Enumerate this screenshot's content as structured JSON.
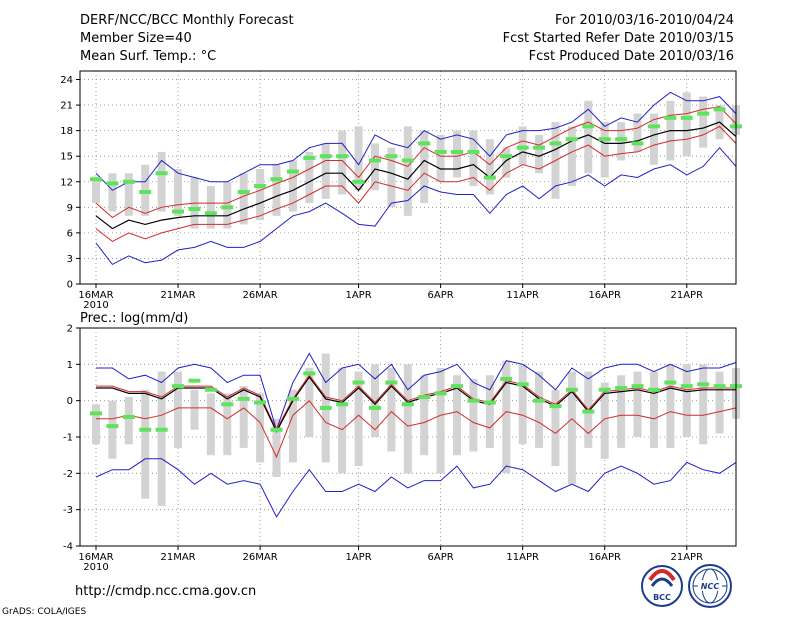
{
  "header": {
    "title": "DERF/NCC/BCC Monthly Forecast",
    "member_size": "Member Size=40",
    "variable": "Mean Surf. Temp.: °C",
    "period": "For 2010/03/16-2010/04/24",
    "started": "Fcst Started Refer Date 2010/03/15",
    "produced": "Fcst Produced Date 2010/03/16"
  },
  "footer": {
    "url": "http://cmdp.ncc.cma.gov.cn",
    "credit": "GrADS: COLA/IGES",
    "logo_bcc": "BCC",
    "logo_ncc": "NCC"
  },
  "colors": {
    "box": "#d3d3d3",
    "obs": "#5fe35f",
    "mean": "#000000",
    "inner": "#d42a2a",
    "outer": "#2020c8"
  },
  "chart_data": [
    {
      "type": "box-ensemble",
      "title": "Mean Surf. Temp.: °C",
      "x_tick_labels": [
        "16MAR",
        "21MAR",
        "26MAR",
        "1APR",
        "6APR",
        "11APR",
        "16APR",
        "21APR"
      ],
      "x_tick_days": [
        1,
        6,
        11,
        17,
        22,
        27,
        32,
        37
      ],
      "x_year_label": "2010",
      "days": 40,
      "ylim": [
        0,
        25
      ],
      "yticks": [
        0,
        3,
        6,
        9,
        12,
        15,
        18,
        21,
        24
      ],
      "series": {
        "box_low": [
          9.5,
          8.5,
          8.0,
          8.0,
          8.5,
          8.0,
          6.5,
          6.5,
          6.5,
          7.0,
          7.5,
          8.0,
          8.5,
          9.5,
          10.0,
          10.5,
          11.0,
          11.0,
          9.0,
          8.0,
          9.5,
          12.0,
          12.5,
          11.5,
          10.5,
          12.5,
          14.0,
          13.0,
          10.0,
          11.5,
          13.0,
          12.5,
          14.5,
          15.5,
          14.0,
          14.5,
          15.0,
          16.0,
          17.0,
          17.5
        ],
        "box_high": [
          12.5,
          13.0,
          13.0,
          14.0,
          15.5,
          13.5,
          12.5,
          11.5,
          12.0,
          13.0,
          13.5,
          14.0,
          14.5,
          15.5,
          16.5,
          18.0,
          18.5,
          16.5,
          16.0,
          18.5,
          18.0,
          17.5,
          18.0,
          18.0,
          17.0,
          16.0,
          18.5,
          17.5,
          19.0,
          18.5,
          21.5,
          19.0,
          19.0,
          20.0,
          20.0,
          21.5,
          22.5,
          22.0,
          21.0,
          21.0
        ],
        "obs": [
          12.3,
          11.8,
          12.0,
          10.8,
          13.0,
          8.5,
          8.8,
          8.3,
          9.0,
          10.8,
          11.5,
          12.3,
          13.2,
          14.8,
          15.0,
          15.0,
          12.0,
          14.5,
          15.0,
          14.5,
          16.5,
          15.5,
          15.5,
          15.5,
          12.5,
          15.0,
          16.0,
          16.0,
          16.5,
          17.0,
          18.5,
          17.0,
          17.0,
          16.5,
          18.5,
          19.5,
          19.5,
          20.0,
          20.5,
          18.5
        ],
        "mean": [
          8.0,
          6.5,
          7.5,
          7.0,
          7.5,
          7.8,
          8.0,
          8.0,
          8.0,
          8.8,
          9.5,
          10.3,
          11.0,
          12.0,
          13.0,
          13.0,
          11.0,
          13.5,
          13.0,
          12.3,
          14.5,
          13.5,
          13.5,
          14.0,
          12.5,
          14.5,
          15.5,
          15.0,
          15.8,
          16.8,
          17.5,
          16.5,
          16.5,
          16.8,
          17.5,
          18.0,
          18.0,
          18.3,
          19.0,
          17.3
        ],
        "inner_upper": [
          9.5,
          7.8,
          9.0,
          8.3,
          9.0,
          9.3,
          9.5,
          9.5,
          9.5,
          10.3,
          11.0,
          11.8,
          12.5,
          13.5,
          14.5,
          14.5,
          12.5,
          15.0,
          14.5,
          13.8,
          16.0,
          15.0,
          15.0,
          15.5,
          14.0,
          16.0,
          16.8,
          16.3,
          17.3,
          18.3,
          19.0,
          18.0,
          18.0,
          18.3,
          19.3,
          19.8,
          20.0,
          20.5,
          20.8,
          18.8
        ],
        "inner_lower": [
          6.5,
          5.0,
          6.0,
          5.3,
          6.0,
          6.5,
          7.0,
          7.0,
          7.0,
          7.5,
          8.0,
          8.8,
          9.5,
          10.5,
          11.5,
          11.5,
          9.5,
          12.0,
          11.5,
          11.0,
          13.0,
          12.0,
          12.0,
          12.5,
          11.0,
          13.0,
          14.0,
          13.5,
          14.5,
          15.5,
          16.3,
          15.0,
          15.3,
          15.5,
          16.3,
          16.8,
          17.0,
          17.5,
          18.5,
          16.5
        ],
        "outer_upper": [
          13.0,
          11.0,
          12.0,
          12.0,
          14.5,
          13.0,
          12.5,
          12.0,
          12.0,
          13.0,
          14.0,
          14.0,
          14.5,
          16.0,
          16.5,
          16.5,
          14.0,
          17.5,
          16.5,
          16.0,
          18.0,
          17.0,
          17.5,
          17.0,
          15.0,
          17.5,
          18.0,
          18.0,
          18.3,
          19.0,
          20.5,
          18.5,
          19.5,
          19.0,
          21.0,
          22.5,
          21.5,
          21.5,
          22.0,
          20.0
        ],
        "outer_lower": [
          4.8,
          2.3,
          3.3,
          2.5,
          2.8,
          4.0,
          4.3,
          5.0,
          4.3,
          4.3,
          5.0,
          6.5,
          8.0,
          8.5,
          9.5,
          8.3,
          7.0,
          6.8,
          9.5,
          9.8,
          11.5,
          10.8,
          10.5,
          10.5,
          8.3,
          10.5,
          11.5,
          10.0,
          11.5,
          12.0,
          12.8,
          11.5,
          12.8,
          12.5,
          13.5,
          14.0,
          12.8,
          13.8,
          16.0,
          13.8
        ]
      }
    },
    {
      "type": "box-ensemble",
      "title": "Prec.: log(mm/d)",
      "x_tick_labels": [
        "16MAR",
        "21MAR",
        "26MAR",
        "1APR",
        "6APR",
        "11APR",
        "16APR",
        "21APR"
      ],
      "x_tick_days": [
        1,
        6,
        11,
        17,
        22,
        27,
        32,
        37
      ],
      "x_year_label": "2010",
      "days": 40,
      "ylim": [
        -4,
        2
      ],
      "yticks": [
        -4,
        -3,
        -2,
        -1,
        0,
        1,
        2
      ],
      "series": {
        "box_low": [
          -1.2,
          -1.6,
          -1.2,
          -2.7,
          -2.9,
          -1.3,
          -0.8,
          -1.5,
          -1.5,
          -1.3,
          -1.7,
          -2.1,
          -1.7,
          -1.0,
          -1.7,
          -2.0,
          -1.8,
          -1.0,
          -1.4,
          -2.0,
          -1.5,
          -2.0,
          -1.5,
          -1.4,
          -1.3,
          -2.0,
          -1.2,
          -1.3,
          -1.8,
          -2.3,
          -1.3,
          -1.6,
          -1.3,
          -1.0,
          -1.3,
          -1.3,
          -1.0,
          -1.2,
          -0.9,
          -0.5
        ],
        "box_high": [
          -0.1,
          0.0,
          0.1,
          0.3,
          0.8,
          0.8,
          0.3,
          0.2,
          0.2,
          0.4,
          0.2,
          -0.5,
          0.3,
          0.9,
          1.3,
          0.9,
          0.8,
          1.0,
          0.9,
          1.0,
          0.7,
          0.9,
          0.7,
          0.6,
          0.7,
          1.1,
          1.0,
          0.8,
          0.3,
          0.8,
          0.8,
          0.5,
          0.7,
          0.8,
          0.8,
          1.0,
          1.0,
          1.0,
          0.8,
          0.9
        ],
        "obs": [
          -0.35,
          -0.7,
          -0.45,
          -0.8,
          -0.8,
          0.4,
          0.55,
          0.3,
          -0.1,
          0.05,
          -0.05,
          -0.8,
          0.05,
          0.75,
          -0.2,
          -0.1,
          0.5,
          -0.2,
          0.5,
          -0.1,
          0.1,
          0.2,
          0.4,
          0.0,
          -0.05,
          0.6,
          0.45,
          0.0,
          -0.15,
          0.3,
          -0.3,
          0.3,
          0.35,
          0.4,
          0.3,
          0.5,
          0.4,
          0.45,
          0.4,
          0.4
        ],
        "mean": [
          0.35,
          0.35,
          0.2,
          0.2,
          0.05,
          0.35,
          0.35,
          0.35,
          0.05,
          0.3,
          0.1,
          -0.85,
          0.0,
          0.65,
          0.05,
          -0.05,
          0.35,
          -0.1,
          0.4,
          -0.05,
          0.1,
          0.2,
          0.35,
          0.0,
          -0.1,
          0.5,
          0.4,
          0.05,
          -0.15,
          0.25,
          -0.3,
          0.2,
          0.25,
          0.3,
          0.2,
          0.35,
          0.25,
          0.3,
          0.3,
          0.3
        ],
        "inner_upper": [
          0.4,
          0.4,
          0.25,
          0.25,
          0.1,
          0.4,
          0.4,
          0.4,
          0.1,
          0.35,
          0.15,
          -0.8,
          0.05,
          0.7,
          0.1,
          0.0,
          0.4,
          -0.05,
          0.45,
          0.0,
          0.15,
          0.25,
          0.4,
          0.05,
          -0.05,
          0.55,
          0.45,
          0.1,
          -0.1,
          0.3,
          -0.25,
          0.25,
          0.3,
          0.35,
          0.25,
          0.4,
          0.3,
          0.35,
          0.35,
          0.35
        ],
        "inner_lower": [
          -0.5,
          -0.5,
          -0.4,
          -0.5,
          -0.4,
          -0.2,
          -0.2,
          -0.2,
          -0.5,
          -0.2,
          -0.6,
          -1.55,
          -0.4,
          0.0,
          -0.6,
          -0.8,
          -0.4,
          -0.8,
          -0.3,
          -0.7,
          -0.6,
          -0.4,
          -0.3,
          -0.6,
          -0.75,
          -0.3,
          -0.4,
          -0.6,
          -0.9,
          -0.5,
          -0.9,
          -0.5,
          -0.4,
          -0.4,
          -0.5,
          -0.3,
          -0.4,
          -0.4,
          -0.3,
          -0.2
        ],
        "outer_upper": [
          0.9,
          0.9,
          0.6,
          0.7,
          0.5,
          0.9,
          1.0,
          0.9,
          0.5,
          0.7,
          0.7,
          -0.8,
          0.5,
          1.3,
          0.5,
          0.9,
          1.0,
          0.6,
          1.0,
          0.3,
          0.7,
          0.8,
          1.0,
          0.5,
          0.3,
          1.1,
          1.0,
          0.7,
          0.3,
          0.9,
          0.6,
          0.9,
          1.0,
          1.0,
          0.8,
          1.0,
          0.8,
          0.9,
          0.9,
          1.05
        ],
        "outer_lower": [
          -2.1,
          -1.9,
          -1.9,
          -1.6,
          -1.6,
          -1.9,
          -2.3,
          -2.0,
          -2.3,
          -2.2,
          -2.3,
          -3.2,
          -2.5,
          -1.9,
          -2.5,
          -2.5,
          -2.3,
          -2.5,
          -2.1,
          -2.4,
          -2.2,
          -2.2,
          -1.8,
          -2.4,
          -2.3,
          -1.8,
          -1.9,
          -2.2,
          -2.5,
          -2.3,
          -2.5,
          -2.0,
          -1.8,
          -2.0,
          -2.3,
          -2.2,
          -1.7,
          -1.9,
          -2.0,
          -1.7
        ]
      }
    }
  ]
}
